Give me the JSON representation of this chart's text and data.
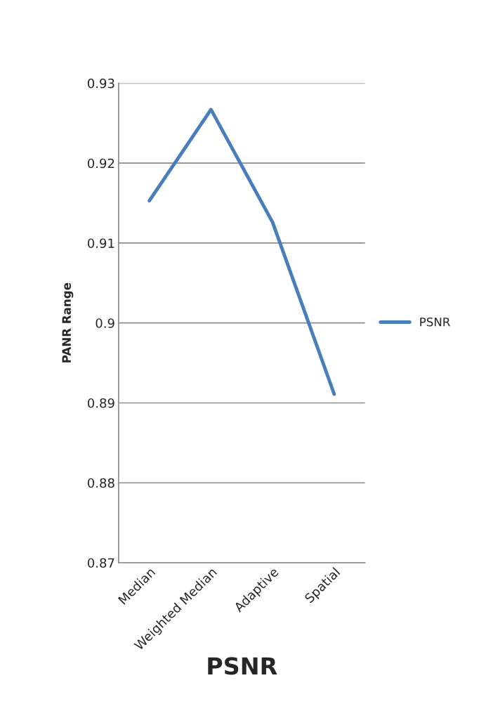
{
  "chart_data": {
    "type": "line",
    "xlabel": "PSNR",
    "ylabel": "PANR Range",
    "categories": [
      "Median",
      "Weighted Median",
      "Adaptive",
      "Spatial"
    ],
    "series": [
      {
        "name": "PSNR",
        "color": "#4a7ebb",
        "values": [
          0.9153,
          0.9267,
          0.9126,
          0.8911
        ]
      }
    ],
    "ylim": [
      0.87,
      0.93
    ],
    "yticks": [
      0.87,
      0.88,
      0.89,
      0.9,
      0.91,
      0.92,
      0.93
    ],
    "grid": "y",
    "legend": "right",
    "marker": "none",
    "line_style": "solid"
  }
}
